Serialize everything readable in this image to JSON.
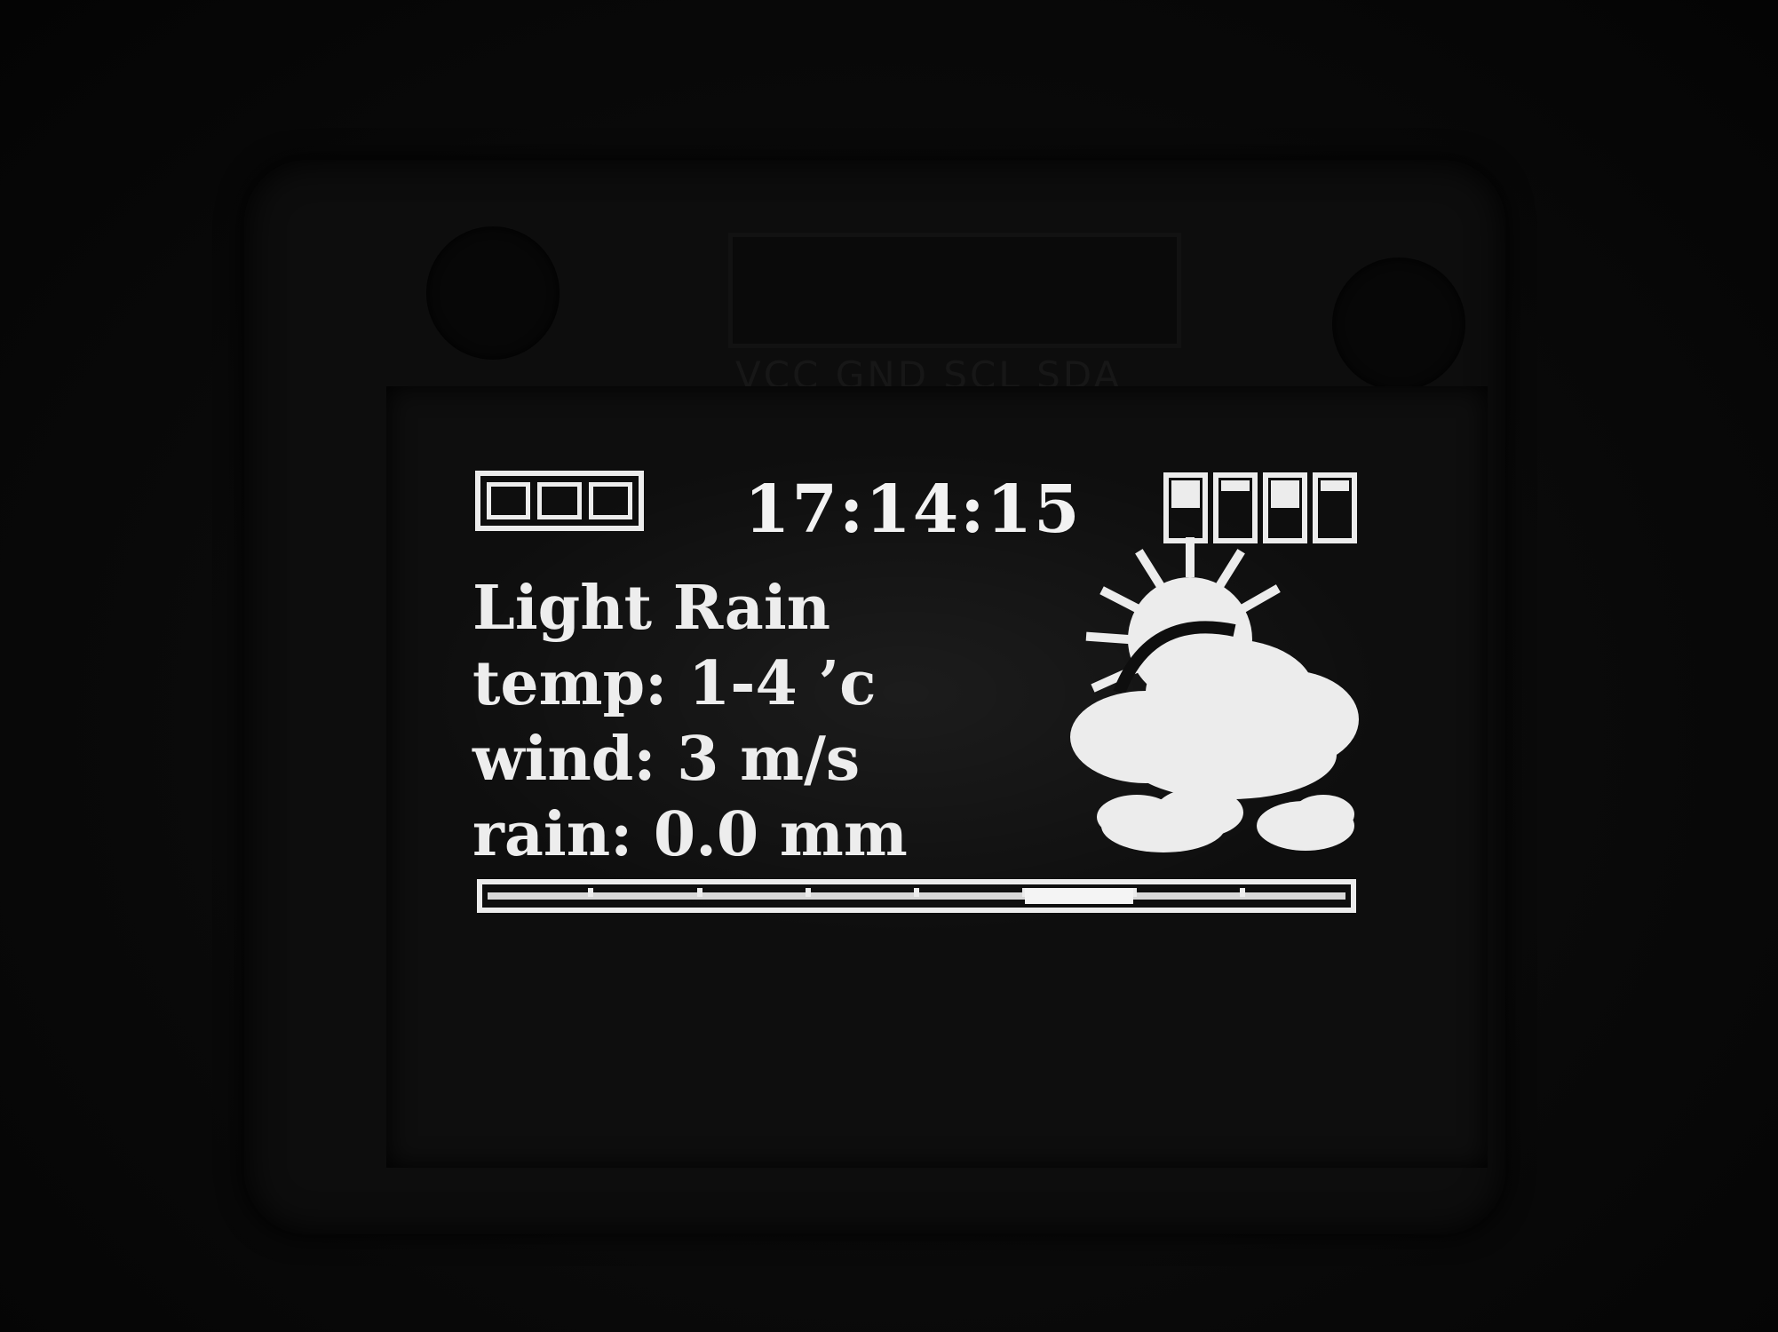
{
  "display": {
    "clock": "17:14:15",
    "battery_cells": 3,
    "signal_bar_levels": [
      0.5,
      0.2,
      0.5,
      0.2
    ],
    "condition": "Light Rain",
    "temp_line": "temp: 1-4 ’c",
    "wind_line": "wind: 3 m/s",
    "rain_line": "rain: 0.0 mm",
    "weather_icon": "partly-cloudy-rain-icon",
    "progress": {
      "segments": 8,
      "active_segment": 5
    }
  },
  "board": {
    "pin_label": "VCC GND SCL SDA"
  },
  "colors": {
    "pixel_on": "#ececec",
    "pixel_off": "#0e0e0e"
  }
}
